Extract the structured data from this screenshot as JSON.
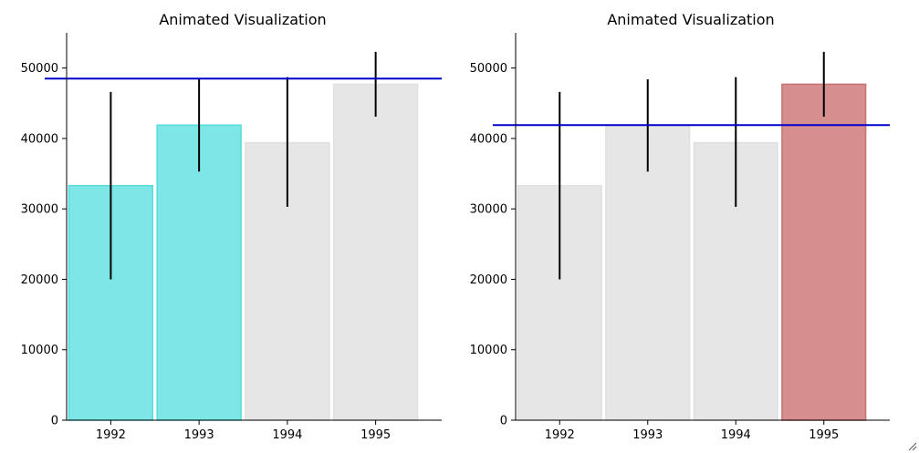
{
  "chart_data": [
    {
      "type": "bar",
      "title": "Animated Visualization",
      "categories": [
        "1992",
        "1993",
        "1994",
        "1995"
      ],
      "values": [
        33300,
        41900,
        39400,
        47700
      ],
      "error_low": [
        20000,
        35300,
        30300,
        43100
      ],
      "error_high": [
        46600,
        48400,
        48700,
        52300
      ],
      "bar_colors": [
        "#7ee6e6",
        "#7ee6e6",
        "#e6e6e6",
        "#e6e6e6"
      ],
      "bar_edge_colors": [
        "#55dcdc",
        "#55dcdc",
        "#e0e0e0",
        "#e0e0e0"
      ],
      "hline": 48500,
      "hline_color": "#0000cc",
      "ylim": [
        0,
        55000
      ],
      "yticks": [
        0,
        10000,
        20000,
        30000,
        40000,
        50000
      ],
      "ytick_labels": [
        "0",
        "10000",
        "20000",
        "30000",
        "40000",
        "50000"
      ],
      "grid": false,
      "xlabel": "",
      "ylabel": ""
    },
    {
      "type": "bar",
      "title": "Animated Visualization",
      "categories": [
        "1992",
        "1993",
        "1994",
        "1995"
      ],
      "values": [
        33300,
        41900,
        39400,
        47700
      ],
      "error_low": [
        20000,
        35300,
        30300,
        43100
      ],
      "error_high": [
        46600,
        48400,
        48700,
        52300
      ],
      "bar_colors": [
        "#e6e6e6",
        "#e6e6e6",
        "#e6e6e6",
        "#d78e8e"
      ],
      "bar_edge_colors": [
        "#e0e0e0",
        "#e0e0e0",
        "#e0e0e0",
        "#c47272"
      ],
      "hline": 41900,
      "hline_color": "#0000cc",
      "ylim": [
        0,
        55000
      ],
      "yticks": [
        0,
        10000,
        20000,
        30000,
        40000,
        50000
      ],
      "ytick_labels": [
        "0",
        "10000",
        "20000",
        "30000",
        "40000",
        "50000"
      ],
      "grid": false,
      "xlabel": "",
      "ylabel": ""
    }
  ],
  "window": {
    "resize_grip_icon": "resize-grip-icon"
  }
}
